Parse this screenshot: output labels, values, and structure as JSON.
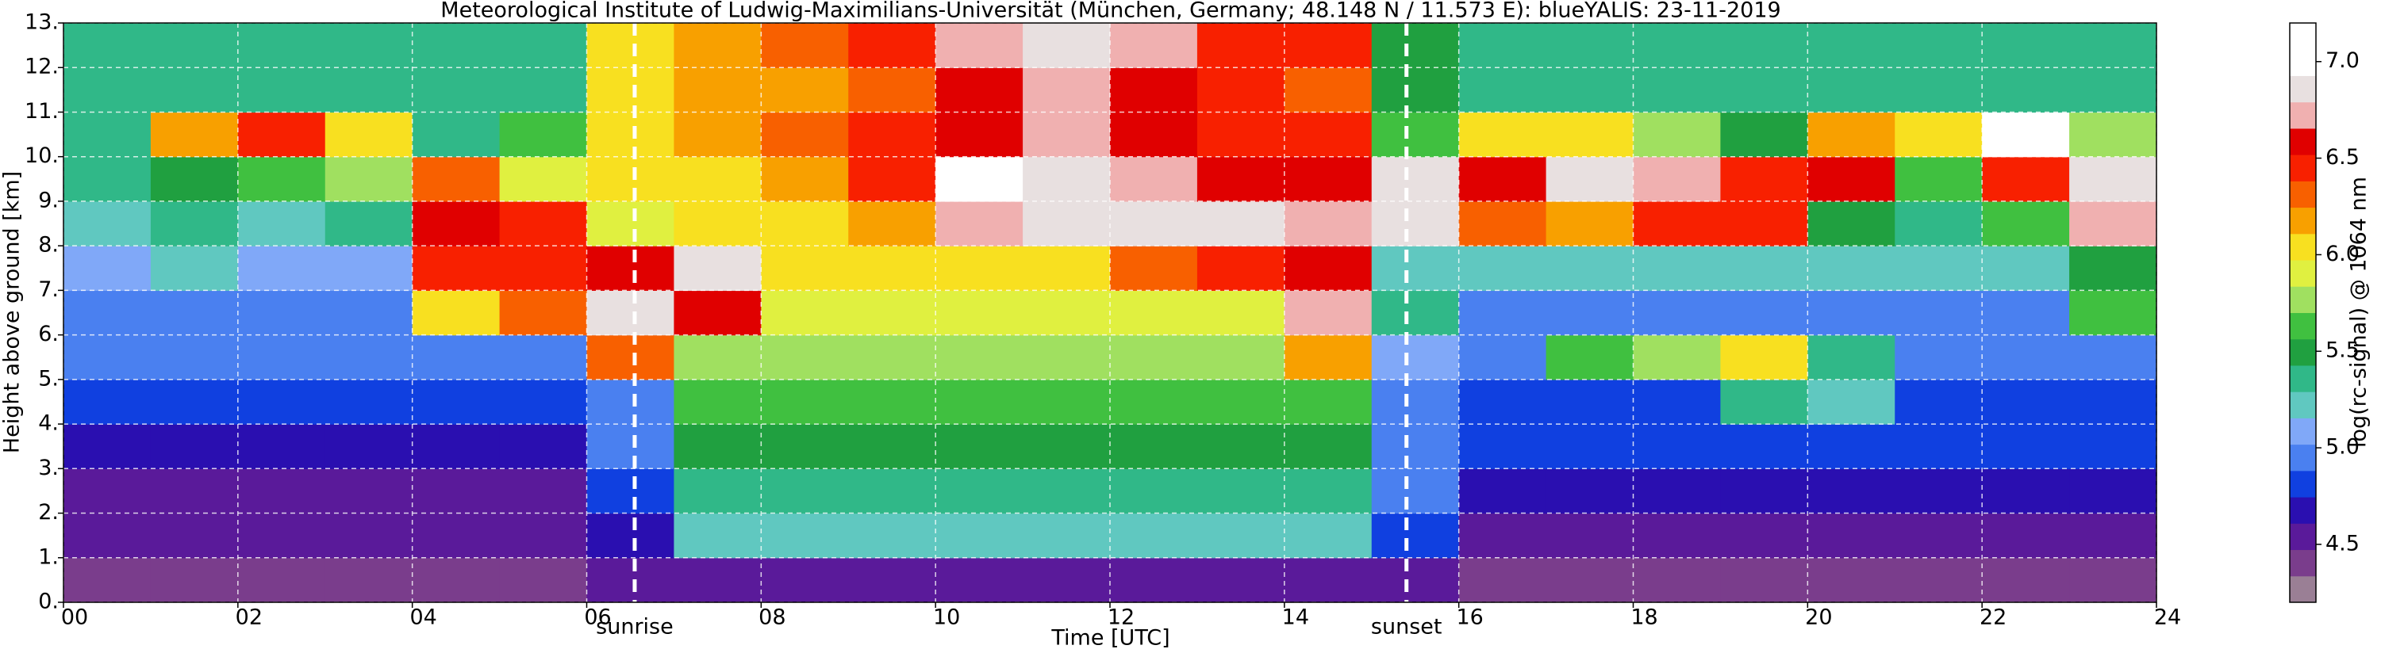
{
  "chart_data": {
    "type": "heatmap",
    "title": "Meteorological Institute of Ludwig-Maximilians-Universität (München, Germany; 48.148 N / 11.573 E):    blueYALIS: 23-11-2019",
    "x_label": "Time [UTC]",
    "y_label": "Height above ground [km]",
    "colorbar_label": "log(rc-signal) @ 1064 nm",
    "xlim": [
      0,
      24
    ],
    "ylim": [
      0,
      13
    ],
    "xticks": [
      {
        "value": 0,
        "label": "00"
      },
      {
        "value": 2,
        "label": "02"
      },
      {
        "value": 4,
        "label": "04"
      },
      {
        "value": 6,
        "label": "06"
      },
      {
        "value": 8,
        "label": "08"
      },
      10,
      12,
      14,
      16,
      18,
      20,
      22,
      24
    ],
    "yticks": [
      {
        "value": 0,
        "label": "0."
      },
      {
        "value": 1,
        "label": "1."
      },
      {
        "value": 2,
        "label": "2."
      },
      {
        "value": 3,
        "label": "3."
      },
      {
        "value": 4,
        "label": "4."
      },
      {
        "value": 5,
        "label": "5."
      },
      {
        "value": 6,
        "label": "6."
      },
      {
        "value": 7,
        "label": "7."
      },
      {
        "value": 8,
        "label": "8."
      },
      {
        "value": 9,
        "label": "9."
      },
      {
        "value": 10,
        "label": "10."
      },
      {
        "value": 11,
        "label": "11."
      },
      {
        "value": 12,
        "label": "12."
      },
      {
        "value": 13,
        "label": "13."
      }
    ],
    "grid": true,
    "clim": [
      4.2,
      7.2
    ],
    "cticks": [
      4.5,
      {
        "value": 5,
        "label": "5.0"
      },
      5.5,
      {
        "value": 6,
        "label": "6.0"
      },
      6.5,
      {
        "value": 7,
        "label": "7.0"
      }
    ],
    "colorscale": [
      "#9a7f95",
      "#7a3d8c",
      "#5a1a9a",
      "#2a0fb0",
      "#1040e0",
      "#4a80f0",
      "#80a8f8",
      "#60c8c0",
      "#30b888",
      "#20a040",
      "#40c040",
      "#a0e060",
      "#e0f040",
      "#f8e020",
      "#f8a000",
      "#f86000",
      "#f82000",
      "#e00000",
      "#f0b0b0",
      "#e8e0e0",
      "#ffffff",
      "#ffffff"
    ],
    "annotations": [
      {
        "x": 6.55,
        "text": "sunrise"
      },
      {
        "x": 15.4,
        "text": "sunset"
      }
    ],
    "x": [
      0.5,
      1.5,
      2.5,
      3.5,
      4.5,
      5.5,
      6.5,
      7.5,
      8.5,
      9.5,
      10.5,
      11.5,
      12.5,
      13.5,
      14.5,
      15.5,
      16.5,
      17.5,
      18.5,
      19.5,
      20.5,
      21.5,
      22.5,
      23.5
    ],
    "y": [
      0.5,
      1.5,
      2.5,
      3.5,
      4.5,
      5.5,
      6.5,
      7.5,
      8.5,
      9.5,
      10.5,
      11.5,
      12.5
    ],
    "z": [
      [
        4.4,
        4.4,
        4.4,
        4.4,
        4.4,
        4.4,
        4.5,
        4.6,
        4.6,
        4.6,
        4.6,
        4.6,
        4.6,
        4.6,
        4.6,
        4.5,
        4.4,
        4.4,
        4.4,
        4.4,
        4.4,
        4.4,
        4.4,
        4.4
      ],
      [
        4.5,
        4.5,
        4.5,
        4.5,
        4.5,
        4.5,
        4.7,
        5.2,
        5.2,
        5.2,
        5.2,
        5.2,
        5.2,
        5.2,
        5.2,
        4.8,
        4.6,
        4.6,
        4.6,
        4.6,
        4.6,
        4.6,
        4.6,
        4.6
      ],
      [
        4.6,
        4.6,
        4.6,
        4.6,
        4.6,
        4.6,
        4.8,
        5.4,
        5.4,
        5.4,
        5.4,
        5.4,
        5.4,
        5.4,
        5.4,
        4.9,
        4.7,
        4.7,
        4.7,
        4.7,
        4.7,
        4.7,
        4.7,
        4.7
      ],
      [
        4.7,
        4.7,
        4.7,
        4.7,
        4.7,
        4.7,
        4.9,
        5.5,
        5.5,
        5.5,
        5.5,
        5.5,
        5.5,
        5.5,
        5.5,
        5.0,
        4.8,
        4.8,
        4.8,
        4.8,
        4.8,
        4.8,
        4.8,
        4.8
      ],
      [
        4.8,
        4.8,
        4.8,
        4.8,
        4.8,
        4.8,
        5.0,
        5.6,
        5.6,
        5.6,
        5.6,
        5.6,
        5.6,
        5.6,
        5.6,
        5.0,
        4.8,
        4.8,
        4.8,
        5.3,
        5.2,
        4.8,
        4.8,
        4.8
      ],
      [
        4.9,
        4.9,
        4.9,
        4.9,
        4.9,
        4.9,
        6.3,
        5.7,
        5.8,
        5.8,
        5.8,
        5.8,
        5.8,
        5.8,
        6.2,
        5.1,
        4.9,
        5.6,
        5.8,
        6.0,
        5.4,
        4.9,
        4.9,
        4.9
      ],
      [
        5.0,
        5.0,
        5.0,
        5.0,
        6.0,
        6.3,
        6.8,
        6.6,
        5.9,
        5.9,
        5.9,
        5.9,
        5.9,
        5.9,
        6.7,
        5.3,
        5.0,
        5.0,
        5.0,
        5.0,
        5.0,
        5.0,
        5.0,
        5.6
      ],
      [
        5.1,
        5.2,
        5.1,
        5.1,
        6.5,
        6.4,
        6.6,
        6.8,
        6.0,
        6.0,
        6.0,
        6.0,
        6.3,
        6.5,
        6.6,
        5.2,
        5.2,
        5.2,
        5.2,
        5.2,
        5.2,
        5.2,
        5.2,
        5.5
      ],
      [
        5.2,
        5.3,
        5.2,
        5.3,
        6.6,
        6.4,
        5.9,
        6.0,
        6.1,
        6.2,
        6.7,
        6.9,
        6.9,
        6.8,
        6.7,
        6.9,
        6.3,
        6.2,
        6.5,
        6.4,
        5.5,
        5.4,
        5.6,
        6.7
      ],
      [
        5.3,
        5.5,
        5.6,
        5.7,
        6.3,
        5.9,
        6.0,
        6.1,
        6.2,
        6.4,
        7.0,
        6.9,
        6.7,
        6.6,
        6.6,
        6.9,
        6.6,
        6.8,
        6.7,
        6.5,
        6.6,
        5.6,
        6.5,
        6.8
      ],
      [
        5.3,
        6.2,
        6.5,
        6.1,
        5.4,
        5.6,
        6.0,
        6.2,
        6.3,
        6.4,
        6.6,
        6.7,
        6.6,
        6.5,
        6.4,
        5.6,
        6.0,
        6.1,
        5.8,
        5.5,
        6.2,
        6.0,
        7.0,
        5.7
      ],
      [
        5.3,
        5.3,
        5.3,
        5.3,
        5.3,
        5.3,
        6.0,
        6.2,
        6.2,
        6.3,
        6.6,
        6.7,
        6.6,
        6.5,
        6.3,
        5.5,
        5.3,
        5.3,
        5.3,
        5.3,
        5.3,
        5.3,
        5.3,
        5.3
      ],
      [
        5.3,
        5.3,
        5.3,
        5.3,
        5.3,
        5.3,
        6.1,
        6.2,
        6.3,
        6.4,
        6.7,
        6.8,
        6.7,
        6.5,
        6.4,
        5.5,
        5.3,
        5.3,
        5.3,
        5.3,
        5.3,
        5.3,
        5.3,
        5.3
      ]
    ]
  }
}
